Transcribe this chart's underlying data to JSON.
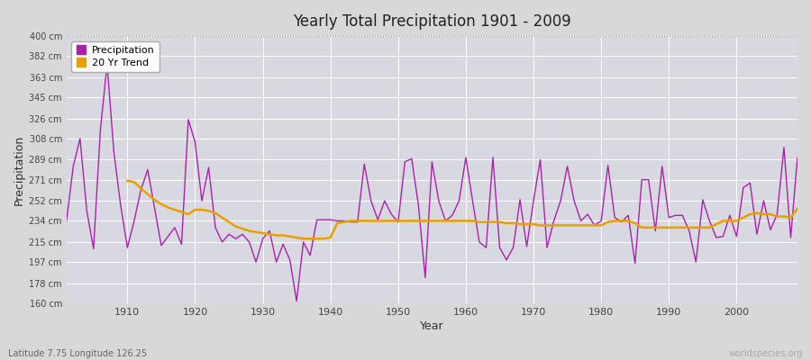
{
  "title": "Yearly Total Precipitation 1901 - 2009",
  "xlabel": "Year",
  "ylabel": "Precipitation",
  "subtitle": "Latitude 7.75 Longitude 126.25",
  "watermark": "worldspecies.org",
  "bg_color": "#d8d8d8",
  "plot_bg_color": "#d8d8e0",
  "precip_color": "#aa22aa",
  "trend_color": "#e8a000",
  "years": [
    1901,
    1902,
    1903,
    1904,
    1905,
    1906,
    1907,
    1908,
    1909,
    1910,
    1911,
    1912,
    1913,
    1914,
    1915,
    1916,
    1917,
    1918,
    1919,
    1920,
    1921,
    1922,
    1923,
    1924,
    1925,
    1926,
    1927,
    1928,
    1929,
    1930,
    1931,
    1932,
    1933,
    1934,
    1935,
    1936,
    1937,
    1938,
    1939,
    1940,
    1941,
    1942,
    1943,
    1944,
    1945,
    1946,
    1947,
    1948,
    1949,
    1950,
    1951,
    1952,
    1953,
    1954,
    1955,
    1956,
    1957,
    1958,
    1959,
    1960,
    1961,
    1962,
    1963,
    1964,
    1965,
    1966,
    1967,
    1968,
    1969,
    1970,
    1971,
    1972,
    1973,
    1974,
    1975,
    1976,
    1977,
    1978,
    1979,
    1980,
    1981,
    1982,
    1983,
    1984,
    1985,
    1986,
    1987,
    1988,
    1989,
    1990,
    1991,
    1992,
    1993,
    1994,
    1995,
    1996,
    1997,
    1998,
    1999,
    2000,
    2001,
    2002,
    2003,
    2004,
    2005,
    2006,
    2007,
    2008,
    2009
  ],
  "precip": [
    234,
    283,
    308,
    243,
    209,
    315,
    375,
    296,
    248,
    210,
    234,
    262,
    280,
    246,
    212,
    220,
    228,
    213,
    325,
    305,
    252,
    282,
    228,
    215,
    222,
    218,
    222,
    215,
    197,
    218,
    225,
    197,
    213,
    199,
    162,
    215,
    203,
    235,
    235,
    235,
    234,
    234,
    233,
    233,
    285,
    252,
    235,
    252,
    240,
    233,
    287,
    290,
    248,
    183,
    287,
    252,
    234,
    239,
    252,
    291,
    252,
    215,
    210,
    291,
    210,
    199,
    210,
    253,
    211,
    252,
    289,
    210,
    234,
    252,
    283,
    252,
    234,
    240,
    230,
    234,
    284,
    237,
    233,
    239,
    196,
    271,
    271,
    225,
    283,
    237,
    239,
    239,
    225,
    197,
    253,
    234,
    219,
    220,
    239,
    220,
    264,
    268,
    222,
    252,
    226,
    240,
    300,
    219,
    291
  ],
  "trend": [
    null,
    null,
    null,
    null,
    null,
    null,
    null,
    null,
    null,
    270,
    269,
    263,
    258,
    253,
    249,
    246,
    244,
    242,
    240,
    244,
    244,
    243,
    241,
    237,
    233,
    229,
    227,
    225,
    224,
    223,
    222,
    221,
    221,
    220,
    219,
    218,
    218,
    218,
    218,
    219,
    232,
    233,
    234,
    234,
    234,
    234,
    234,
    234,
    234,
    234,
    234,
    234,
    234,
    234,
    234,
    234,
    234,
    234,
    234,
    234,
    234,
    233,
    233,
    233,
    233,
    232,
    232,
    231,
    231,
    231,
    230,
    230,
    230,
    230,
    230,
    230,
    230,
    230,
    230,
    230,
    233,
    234,
    234,
    234,
    232,
    228,
    228,
    228,
    228,
    228,
    228,
    228,
    228,
    228,
    228,
    228,
    231,
    234,
    234,
    234,
    237,
    240,
    241,
    240,
    240,
    238,
    238,
    237,
    245
  ],
  "ylim": [
    160,
    400
  ],
  "yticks": [
    160,
    178,
    197,
    215,
    234,
    252,
    271,
    289,
    308,
    326,
    345,
    363,
    382,
    400
  ],
  "xticks": [
    1910,
    1920,
    1930,
    1940,
    1950,
    1960,
    1970,
    1980,
    1990,
    2000
  ],
  "grid_color": "#ffffff",
  "top_dotted_color": "#888888"
}
